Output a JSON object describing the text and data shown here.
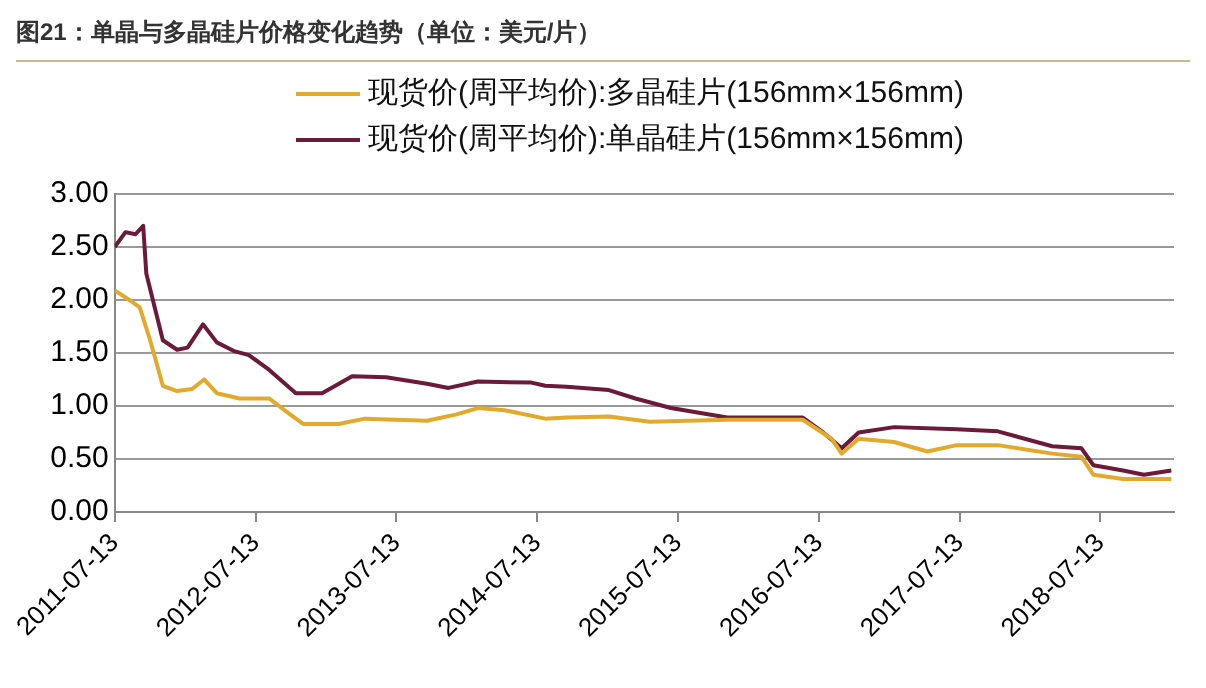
{
  "chart_data": {
    "type": "line",
    "title": "图21：单晶与多晶硅片价格变化趋势（单位：美元/片）",
    "series": [
      {
        "name": "现货价(周平均价):多晶硅片(156mm×156mm)",
        "color": "#e3a92c",
        "x": [
          "2011-07-13",
          "2011-08-20",
          "2011-09-16",
          "2011-10-13",
          "2011-11-15",
          "2011-12-22",
          "2012-01-30",
          "2012-03-01",
          "2012-04-03",
          "2012-06-01",
          "2012-08-17",
          "2012-10-10",
          "2012-11-13",
          "2013-02-13",
          "2013-04-22",
          "2013-09-30",
          "2013-12-16",
          "2014-02-09",
          "2014-04-19",
          "2014-08-03",
          "2014-09-27",
          "2015-01-15",
          "2015-05-01",
          "2015-11-18",
          "2016-06-01",
          "2016-08-15",
          "2016-09-10",
          "2016-10-24",
          "2017-01-24",
          "2017-04-20",
          "2017-07-05",
          "2017-10-20",
          "2018-03-10",
          "2018-05-25",
          "2018-06-25",
          "2018-09-10",
          "2019-01-13"
        ],
        "values": [
          2.09,
          2.0,
          1.93,
          1.62,
          1.19,
          1.14,
          1.16,
          1.25,
          1.12,
          1.07,
          1.07,
          0.92,
          0.83,
          0.83,
          0.88,
          0.86,
          0.92,
          0.98,
          0.96,
          0.88,
          0.89,
          0.9,
          0.85,
          0.87,
          0.87,
          0.69,
          0.55,
          0.69,
          0.66,
          0.57,
          0.63,
          0.63,
          0.55,
          0.52,
          0.35,
          0.31,
          0.31
        ]
      },
      {
        "name": "现货价(周平均价):单晶硅片(156mm×156mm)",
        "color": "#6b1a3a",
        "x": [
          "2011-07-13",
          "2011-08-10",
          "2011-09-05",
          "2011-09-25",
          "2011-10-03",
          "2011-11-15",
          "2011-12-22",
          "2012-01-18",
          "2012-02-27",
          "2012-04-03",
          "2012-05-16",
          "2012-06-25",
          "2012-08-17",
          "2012-10-25",
          "2013-01-01",
          "2013-03-20",
          "2013-06-16",
          "2013-09-30",
          "2013-11-25",
          "2014-02-09",
          "2014-06-28",
          "2014-08-03",
          "2014-09-27",
          "2015-01-15",
          "2015-03-25",
          "2015-06-25",
          "2015-11-18",
          "2016-06-01",
          "2016-07-24",
          "2016-09-10",
          "2016-10-24",
          "2017-01-24",
          "2017-07-05",
          "2017-10-20",
          "2018-03-10",
          "2018-05-25",
          "2018-06-25",
          "2018-09-10",
          "2018-11-03",
          "2019-01-13"
        ],
        "values": [
          2.5,
          2.64,
          2.62,
          2.7,
          2.25,
          1.62,
          1.53,
          1.55,
          1.77,
          1.6,
          1.52,
          1.48,
          1.34,
          1.12,
          1.12,
          1.28,
          1.27,
          1.21,
          1.17,
          1.23,
          1.22,
          1.19,
          1.18,
          1.15,
          1.07,
          0.98,
          0.89,
          0.89,
          0.75,
          0.6,
          0.75,
          0.8,
          0.78,
          0.76,
          0.62,
          0.6,
          0.44,
          0.39,
          0.35,
          0.39
        ]
      }
    ],
    "xlim": [
      "2011-07-13",
      "2019-01-20"
    ],
    "xticks": [
      "2011-07-13",
      "2012-07-13",
      "2013-07-13",
      "2014-07-13",
      "2015-07-13",
      "2016-07-13",
      "2017-07-13",
      "2018-07-13"
    ],
    "ylim": [
      0,
      3
    ],
    "yticks": [
      {
        "value": 0,
        "label": "0.00"
      },
      {
        "value": 0.5,
        "label": "0.50"
      },
      {
        "value": 1,
        "label": "1.00"
      },
      {
        "value": 1.5,
        "label": "1.50"
      },
      {
        "value": 2,
        "label": "2.00"
      },
      {
        "value": 2.5,
        "label": "2.50"
      },
      {
        "value": 3,
        "label": "3.00"
      }
    ],
    "grid": "y",
    "legend": "top",
    "marker": "none",
    "line_style": "solid"
  }
}
